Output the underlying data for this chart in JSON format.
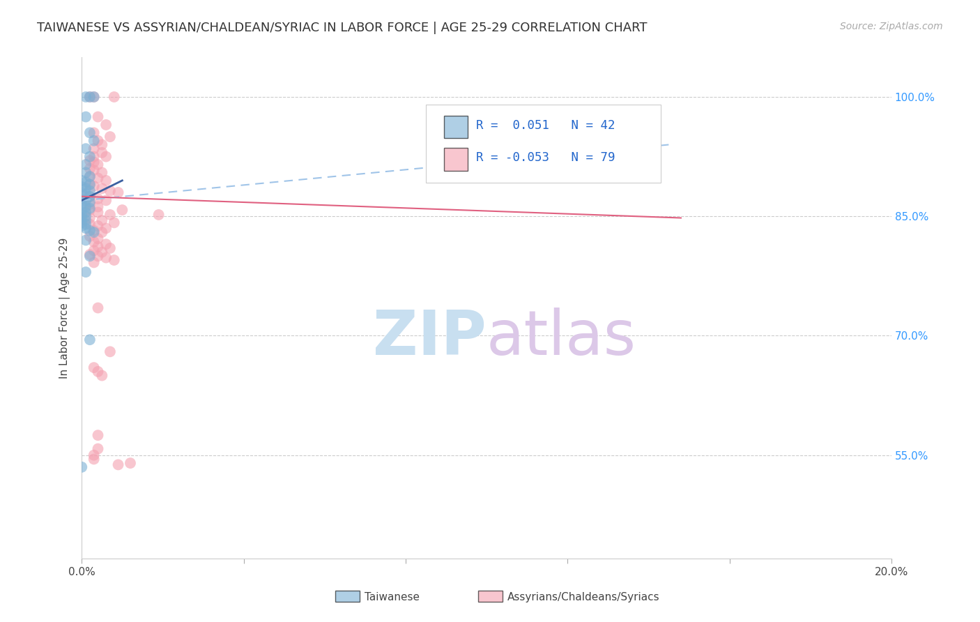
{
  "title": "TAIWANESE VS ASSYRIAN/CHALDEAN/SYRIAC IN LABOR FORCE | AGE 25-29 CORRELATION CHART",
  "source": "Source: ZipAtlas.com",
  "ylabel": "In Labor Force | Age 25-29",
  "ytick_labels": [
    "100.0%",
    "85.0%",
    "70.0%",
    "55.0%"
  ],
  "ytick_values": [
    1.0,
    0.85,
    0.7,
    0.55
  ],
  "background_color": "#ffffff",
  "legend_label1": "Taiwanese",
  "legend_label2": "Assyrians/Chaldeans/Syriacs",
  "blue_color": "#7aafd4",
  "pink_color": "#f4a0b0",
  "blue_line_color": "#3a5fa0",
  "pink_line_color": "#e06080",
  "dashed_line_color": "#a0c4e8",
  "blue_scatter": [
    [
      0.001,
      1.0
    ],
    [
      0.002,
      1.0
    ],
    [
      0.003,
      1.0
    ],
    [
      0.001,
      0.975
    ],
    [
      0.002,
      0.955
    ],
    [
      0.003,
      0.945
    ],
    [
      0.001,
      0.935
    ],
    [
      0.002,
      0.925
    ],
    [
      0.001,
      0.915
    ],
    [
      0.001,
      0.905
    ],
    [
      0.002,
      0.9
    ],
    [
      0.0,
      0.895
    ],
    [
      0.001,
      0.893
    ],
    [
      0.002,
      0.89
    ],
    [
      0.0,
      0.887
    ],
    [
      0.001,
      0.885
    ],
    [
      0.002,
      0.882
    ],
    [
      0.0,
      0.88
    ],
    [
      0.001,
      0.878
    ],
    [
      0.002,
      0.875
    ],
    [
      0.0,
      0.872
    ],
    [
      0.001,
      0.87
    ],
    [
      0.002,
      0.868
    ],
    [
      0.0,
      0.865
    ],
    [
      0.001,
      0.862
    ],
    [
      0.002,
      0.86
    ],
    [
      0.0,
      0.858
    ],
    [
      0.001,
      0.855
    ],
    [
      0.0,
      0.852
    ],
    [
      0.001,
      0.85
    ],
    [
      0.0,
      0.848
    ],
    [
      0.001,
      0.845
    ],
    [
      0.0,
      0.842
    ],
    [
      0.001,
      0.84
    ],
    [
      0.0,
      0.838
    ],
    [
      0.001,
      0.835
    ],
    [
      0.002,
      0.832
    ],
    [
      0.003,
      0.83
    ],
    [
      0.001,
      0.82
    ],
    [
      0.002,
      0.8
    ],
    [
      0.001,
      0.78
    ],
    [
      0.002,
      0.695
    ],
    [
      0.0,
      0.535
    ]
  ],
  "pink_scatter": [
    [
      0.002,
      1.0
    ],
    [
      0.003,
      1.0
    ],
    [
      0.008,
      1.0
    ],
    [
      0.004,
      0.975
    ],
    [
      0.006,
      0.965
    ],
    [
      0.003,
      0.955
    ],
    [
      0.007,
      0.95
    ],
    [
      0.004,
      0.945
    ],
    [
      0.005,
      0.94
    ],
    [
      0.003,
      0.935
    ],
    [
      0.005,
      0.93
    ],
    [
      0.003,
      0.925
    ],
    [
      0.006,
      0.925
    ],
    [
      0.002,
      0.92
    ],
    [
      0.003,
      0.918
    ],
    [
      0.004,
      0.915
    ],
    [
      0.002,
      0.91
    ],
    [
      0.003,
      0.908
    ],
    [
      0.005,
      0.905
    ],
    [
      0.002,
      0.9
    ],
    [
      0.004,
      0.898
    ],
    [
      0.006,
      0.895
    ],
    [
      0.002,
      0.89
    ],
    [
      0.003,
      0.888
    ],
    [
      0.005,
      0.885
    ],
    [
      0.007,
      0.882
    ],
    [
      0.009,
      0.88
    ],
    [
      0.002,
      0.875
    ],
    [
      0.004,
      0.872
    ],
    [
      0.006,
      0.87
    ],
    [
      0.002,
      0.865
    ],
    [
      0.004,
      0.862
    ],
    [
      0.002,
      0.858
    ],
    [
      0.004,
      0.855
    ],
    [
      0.007,
      0.852
    ],
    [
      0.002,
      0.848
    ],
    [
      0.005,
      0.845
    ],
    [
      0.008,
      0.842
    ],
    [
      0.002,
      0.84
    ],
    [
      0.004,
      0.838
    ],
    [
      0.006,
      0.835
    ],
    [
      0.003,
      0.832
    ],
    [
      0.005,
      0.83
    ],
    [
      0.002,
      0.825
    ],
    [
      0.004,
      0.822
    ],
    [
      0.003,
      0.818
    ],
    [
      0.006,
      0.815
    ],
    [
      0.004,
      0.812
    ],
    [
      0.007,
      0.81
    ],
    [
      0.003,
      0.807
    ],
    [
      0.005,
      0.805
    ],
    [
      0.002,
      0.802
    ],
    [
      0.004,
      0.8
    ],
    [
      0.006,
      0.798
    ],
    [
      0.008,
      0.795
    ],
    [
      0.003,
      0.792
    ],
    [
      0.01,
      0.858
    ],
    [
      0.004,
      0.735
    ],
    [
      0.007,
      0.68
    ],
    [
      0.003,
      0.66
    ],
    [
      0.004,
      0.655
    ],
    [
      0.005,
      0.65
    ],
    [
      0.009,
      0.538
    ],
    [
      0.004,
      0.575
    ],
    [
      0.004,
      0.558
    ],
    [
      0.003,
      0.55
    ],
    [
      0.003,
      0.545
    ],
    [
      0.012,
      0.54
    ],
    [
      0.019,
      0.852
    ]
  ],
  "xlim": [
    0.0,
    0.2
  ],
  "ylim": [
    0.42,
    1.05
  ],
  "blue_line_x": [
    0.0,
    0.01
  ],
  "blue_line_y": [
    0.87,
    0.895
  ],
  "dashed_line_x": [
    0.0,
    0.145
  ],
  "dashed_line_y": [
    0.87,
    0.94
  ],
  "pink_line_x": [
    0.0,
    0.148
  ],
  "pink_line_y": [
    0.875,
    0.848
  ],
  "figsize": [
    14.06,
    8.92
  ],
  "dpi": 100
}
